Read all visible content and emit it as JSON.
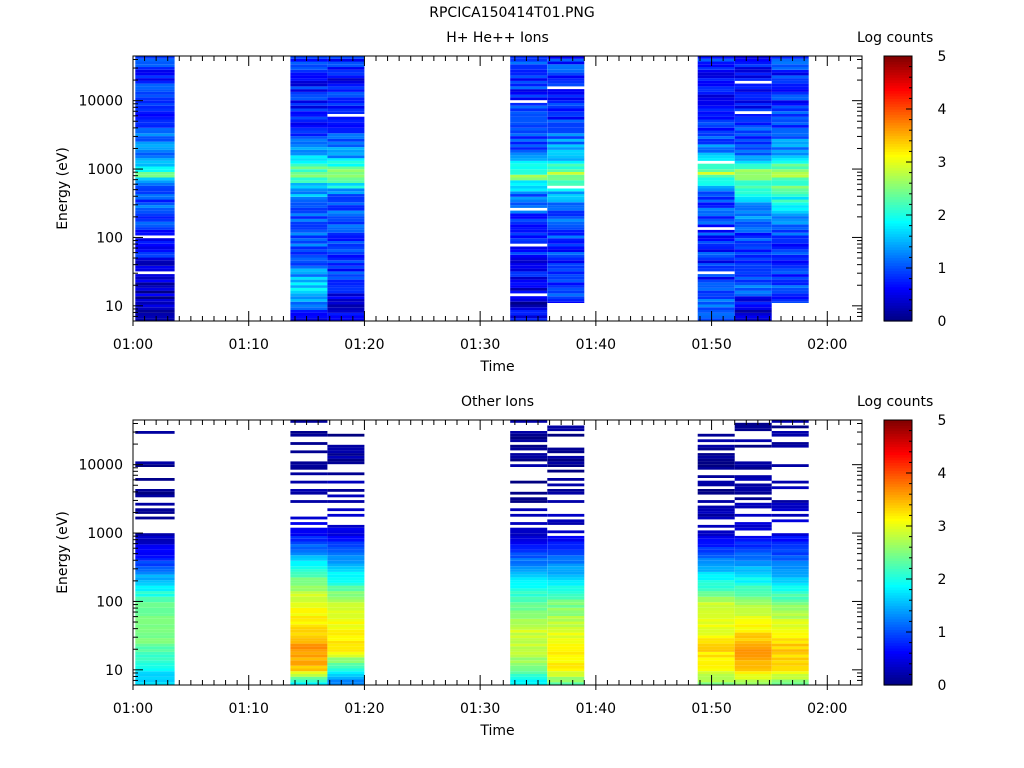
{
  "figure_title": "RPCICA150414T01.PNG",
  "colors": {
    "axis": "#000000",
    "background": "#ffffff",
    "colormap": "jet"
  },
  "chart_data": [
    {
      "type": "heatmap",
      "title": "H+ He++ Ions",
      "xlabel": "Time",
      "ylabel": "Energy (eV)",
      "yscale": "log",
      "xlim": [
        "01:00",
        "02:03"
      ],
      "ylim": [
        6,
        45000
      ],
      "x_ticks": [
        "01:00",
        "01:10",
        "01:20",
        "01:30",
        "01:40",
        "01:50",
        "02:00"
      ],
      "y_ticks": [
        "10",
        "100",
        "1000",
        "10000"
      ],
      "colorbar": {
        "label": "Log counts",
        "range": [
          0,
          5
        ],
        "ticks": [
          "0",
          "1",
          "2",
          "3",
          "4",
          "5"
        ]
      },
      "time_blocks": [
        {
          "start": "01:00.2",
          "end": "01:03.6",
          "emin": 6,
          "profile": [
            [
              6,
              0.4
            ],
            [
              10,
              0.3
            ],
            [
              30,
              0.35
            ],
            [
              80,
              0.8
            ],
            [
              200,
              0.9
            ],
            [
              500,
              1.1
            ],
            [
              800,
              2.2
            ],
            [
              1500,
              1.3
            ],
            [
              5000,
              0.9
            ],
            [
              20000,
              0.8
            ],
            [
              45000,
              0.9
            ]
          ],
          "gaps": [
            30,
            100
          ]
        },
        {
          "start": "01:13.6",
          "end": "01:16.8",
          "emin": 6,
          "profile": [
            [
              6,
              0.2
            ],
            [
              10,
              1.2
            ],
            [
              20,
              1.8
            ],
            [
              30,
              1.3
            ],
            [
              100,
              1.0
            ],
            [
              400,
              1.3
            ],
            [
              900,
              2.4
            ],
            [
              1500,
              1.5
            ],
            [
              5000,
              0.8
            ],
            [
              20000,
              0.7
            ],
            [
              45000,
              0.8
            ]
          ],
          "gaps": []
        },
        {
          "start": "01:16.8",
          "end": "01:20.0",
          "emin": 6,
          "profile": [
            [
              6,
              0.5
            ],
            [
              10,
              0.4
            ],
            [
              30,
              0.8
            ],
            [
              100,
              0.9
            ],
            [
              400,
              1.1
            ],
            [
              850,
              2.6
            ],
            [
              1500,
              1.3
            ],
            [
              5000,
              0.8
            ],
            [
              20000,
              0.7
            ],
            [
              45000,
              0.8
            ]
          ],
          "gaps": [
            6000
          ]
        },
        {
          "start": "01:32.6",
          "end": "01:35.8",
          "emin": 6,
          "profile": [
            [
              6,
              0.8
            ],
            [
              10,
              0.3
            ],
            [
              20,
              0.6
            ],
            [
              100,
              0.8
            ],
            [
              400,
              1.1
            ],
            [
              800,
              2.4
            ],
            [
              1500,
              1.2
            ],
            [
              5000,
              0.9
            ],
            [
              20000,
              0.8
            ],
            [
              45000,
              0.9
            ]
          ],
          "gaps": [
            15,
            80,
            250,
            10000
          ]
        },
        {
          "start": "01:35.8",
          "end": "01:39.0",
          "emin": 11,
          "profile": [
            [
              11,
              0.9
            ],
            [
              30,
              0.8
            ],
            [
              100,
              0.9
            ],
            [
              400,
              1.3
            ],
            [
              800,
              2.7
            ],
            [
              1500,
              1.5
            ],
            [
              5000,
              0.9
            ],
            [
              20000,
              0.8
            ],
            [
              45000,
              0.9
            ]
          ],
          "gaps": [
            550,
            15000
          ]
        },
        {
          "start": "01:48.8",
          "end": "01:52.0",
          "emin": 6,
          "profile": [
            [
              6,
              0.9
            ],
            [
              10,
              1.2
            ],
            [
              30,
              0.8
            ],
            [
              100,
              0.8
            ],
            [
              400,
              1.0
            ],
            [
              900,
              2.7
            ],
            [
              1500,
              1.4
            ],
            [
              5000,
              0.8
            ],
            [
              20000,
              0.7
            ],
            [
              45000,
              0.8
            ]
          ],
          "gaps": [
            30,
            130,
            1200
          ]
        },
        {
          "start": "01:52.0",
          "end": "01:55.2",
          "emin": 6,
          "profile": [
            [
              6,
              0.3
            ],
            [
              10,
              0.5
            ],
            [
              20,
              1.3
            ],
            [
              30,
              0.8
            ],
            [
              100,
              0.9
            ],
            [
              400,
              1.7
            ],
            [
              900,
              2.5
            ],
            [
              1500,
              1.3
            ],
            [
              5000,
              0.8
            ],
            [
              20000,
              0.7
            ],
            [
              45000,
              0.8
            ]
          ],
          "gaps": [
            7000,
            18000
          ]
        },
        {
          "start": "01:55.2",
          "end": "01:58.4",
          "emin": 11,
          "profile": [
            [
              11,
              1.0
            ],
            [
              30,
              0.8
            ],
            [
              100,
              0.8
            ],
            [
              300,
              1.9
            ],
            [
              900,
              2.6
            ],
            [
              1500,
              1.5
            ],
            [
              5000,
              0.9
            ],
            [
              20000,
              0.8
            ],
            [
              45000,
              0.9
            ]
          ],
          "gaps": []
        }
      ]
    },
    {
      "type": "heatmap",
      "title": "Other Ions",
      "xlabel": "Time",
      "ylabel": "Energy (eV)",
      "yscale": "log",
      "xlim": [
        "01:00",
        "02:03"
      ],
      "ylim": [
        6,
        45000
      ],
      "x_ticks": [
        "01:00",
        "01:10",
        "01:20",
        "01:30",
        "01:40",
        "01:50",
        "02:00"
      ],
      "y_ticks": [
        "10",
        "100",
        "1000",
        "10000"
      ],
      "colorbar": {
        "label": "Log counts",
        "range": [
          0,
          5
        ],
        "ticks": [
          "0",
          "1",
          "2",
          "3",
          "4",
          "5"
        ]
      },
      "time_blocks": [
        {
          "start": "01:00.2",
          "end": "01:03.6",
          "emin": 6,
          "profile": [
            [
              6,
              1.7
            ],
            [
              10,
              1.8
            ],
            [
              20,
              2.3
            ],
            [
              40,
              2.6
            ],
            [
              100,
              2.3
            ],
            [
              200,
              1.6
            ],
            [
              500,
              0.6
            ],
            [
              1000,
              0.2
            ],
            [
              3000,
              0.1
            ],
            [
              45000,
              0.1
            ]
          ],
          "sparse_above": 1000
        },
        {
          "start": "01:13.6",
          "end": "01:16.8",
          "emin": 6,
          "profile": [
            [
              6,
              1.7
            ],
            [
              10,
              3.4
            ],
            [
              20,
              3.7
            ],
            [
              40,
              3.3
            ],
            [
              100,
              3.0
            ],
            [
              200,
              2.5
            ],
            [
              500,
              1.4
            ],
            [
              1000,
              0.6
            ],
            [
              3000,
              0.2
            ],
            [
              45000,
              0.1
            ]
          ],
          "sparse_above": 1200
        },
        {
          "start": "01:16.8",
          "end": "01:20.0",
          "emin": 6,
          "profile": [
            [
              6,
              1.1
            ],
            [
              10,
              2.0
            ],
            [
              20,
              3.2
            ],
            [
              40,
              3.1
            ],
            [
              100,
              2.8
            ],
            [
              200,
              2.0
            ],
            [
              500,
              1.2
            ],
            [
              1000,
              0.5
            ],
            [
              3000,
              0.2
            ],
            [
              45000,
              0.1
            ]
          ],
          "sparse_above": 1200
        },
        {
          "start": "01:32.6",
          "end": "01:35.8",
          "emin": 6,
          "profile": [
            [
              6,
              1.7
            ],
            [
              10,
              2.5
            ],
            [
              20,
              2.8
            ],
            [
              40,
              2.9
            ],
            [
              100,
              2.3
            ],
            [
              200,
              1.8
            ],
            [
              500,
              1.0
            ],
            [
              1000,
              0.3
            ],
            [
              3000,
              0.1
            ],
            [
              45000,
              0.1
            ]
          ],
          "sparse_above": 1200
        },
        {
          "start": "01:35.8",
          "end": "01:39.0",
          "emin": 6,
          "profile": [
            [
              6,
              2.3
            ],
            [
              10,
              3.1
            ],
            [
              20,
              3.2
            ],
            [
              40,
              2.9
            ],
            [
              100,
              2.4
            ],
            [
              200,
              1.7
            ],
            [
              500,
              1.0
            ],
            [
              1000,
              0.4
            ],
            [
              3000,
              0.1
            ],
            [
              45000,
              0.1
            ]
          ],
          "sparse_above": 900
        },
        {
          "start": "01:48.8",
          "end": "01:52.0",
          "emin": 6,
          "profile": [
            [
              6,
              2.5
            ],
            [
              10,
              3.1
            ],
            [
              20,
              3.3
            ],
            [
              40,
              3.0
            ],
            [
              100,
              2.8
            ],
            [
              200,
              1.9
            ],
            [
              500,
              1.0
            ],
            [
              1000,
              0.4
            ],
            [
              3000,
              0.1
            ],
            [
              45000,
              0.1
            ]
          ],
          "sparse_above": 1100
        },
        {
          "start": "01:52.0",
          "end": "01:55.2",
          "emin": 6,
          "profile": [
            [
              6,
              2.5
            ],
            [
              10,
              3.4
            ],
            [
              20,
              3.6
            ],
            [
              40,
              3.2
            ],
            [
              100,
              2.6
            ],
            [
              200,
              1.9
            ],
            [
              500,
              1.1
            ],
            [
              1000,
              0.5
            ],
            [
              3000,
              0.2
            ],
            [
              45000,
              0.1
            ]
          ],
          "sparse_above": 900
        },
        {
          "start": "01:55.2",
          "end": "01:58.4",
          "emin": 6,
          "profile": [
            [
              6,
              2.4
            ],
            [
              10,
              3.2
            ],
            [
              20,
              3.4
            ],
            [
              40,
              3.1
            ],
            [
              100,
              2.4
            ],
            [
              200,
              1.7
            ],
            [
              500,
              1.0
            ],
            [
              1000,
              0.5
            ],
            [
              3000,
              0.2
            ],
            [
              45000,
              0.1
            ]
          ],
          "sparse_above": 1000
        }
      ]
    }
  ]
}
